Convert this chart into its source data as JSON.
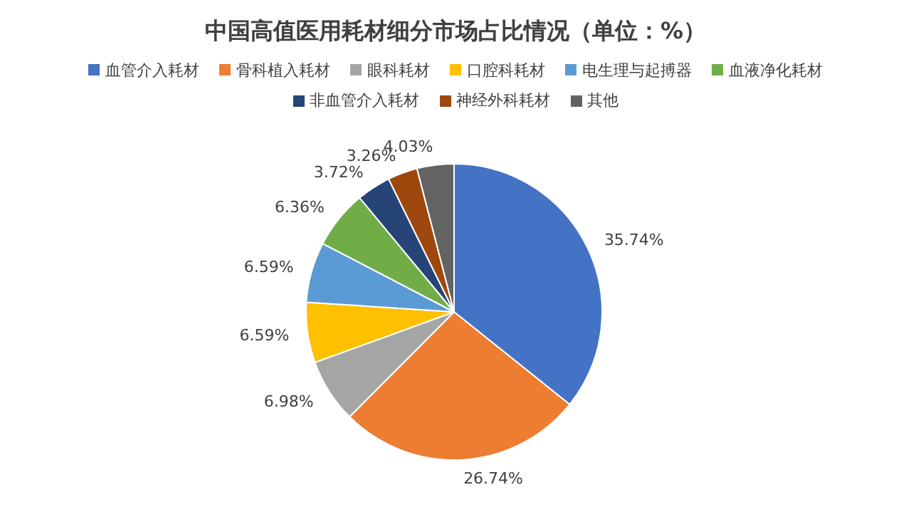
{
  "chart_data": {
    "type": "pie",
    "title": "中国高值医用耗材细分市场占比情况（单位：%）",
    "categories": [
      "血管介入耗材",
      "骨科植入耗材",
      "眼科耗材",
      "口腔科耗材",
      "电生理与起搏器",
      "血液净化耗材",
      "非血管介入耗材",
      "神经外科耗材",
      "其他"
    ],
    "values": [
      35.74,
      26.74,
      6.98,
      6.59,
      6.59,
      6.36,
      3.72,
      3.26,
      4.03
    ],
    "colors": [
      "#4472c4",
      "#ed7d31",
      "#a5a5a5",
      "#ffc000",
      "#5b9bd5",
      "#70ad47",
      "#264478",
      "#9e480e",
      "#636363"
    ],
    "value_labels": [
      "35.74%",
      "26.74%",
      "6.98%",
      "6.59%",
      "6.59%",
      "6.36%",
      "3.72%",
      "3.26%",
      "4.03%"
    ],
    "legend": "top"
  }
}
